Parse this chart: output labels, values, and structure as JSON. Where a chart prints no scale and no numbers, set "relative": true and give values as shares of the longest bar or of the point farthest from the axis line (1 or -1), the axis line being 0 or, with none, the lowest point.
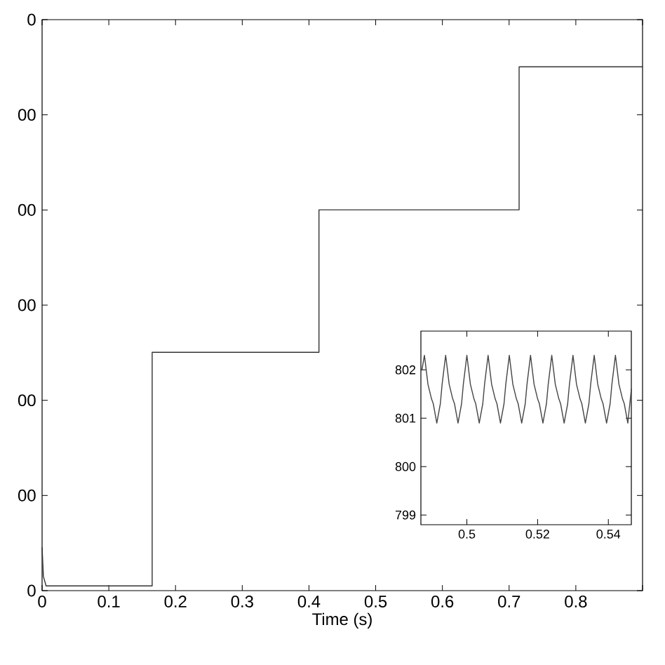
{
  "chart_data": [
    {
      "type": "line",
      "xlabel": "Time (s)",
      "relative": true,
      "x": [
        0,
        0.002,
        0.006,
        0.165,
        0.165,
        0.415,
        0.415,
        0.715,
        0.715,
        0.9
      ],
      "values": [
        0.082,
        0.027,
        0.009,
        0.009,
        0.455,
        0.455,
        0.727,
        0.727,
        1,
        1
      ],
      "color": "#333333",
      "xlim": [
        0,
        0.9
      ],
      "xticks": [
        0,
        0.1,
        0.2,
        0.3,
        0.4,
        0.5,
        0.6,
        0.7,
        0.8,
        {
          "value": 0.9,
          "label": null
        }
      ],
      "annotations": [
        "0",
        "00",
        "00",
        "00",
        "00",
        "00",
        "0"
      ]
    },
    {
      "type": "line",
      "x": [
        0.4873,
        0.488,
        0.489,
        0.49,
        0.4905,
        0.4915,
        0.4925,
        0.493,
        0.494,
        0.495,
        0.496,
        0.4965,
        0.4975,
        0.4985,
        0.499,
        0.5,
        0.501,
        0.502,
        0.5025,
        0.5035,
        0.5045,
        0.505,
        0.506,
        0.507,
        0.508,
        0.5085,
        0.5095,
        0.5105,
        0.511,
        0.512,
        0.513,
        0.514,
        0.5145,
        0.5155,
        0.5165,
        0.517,
        0.518,
        0.519,
        0.52,
        0.5205,
        0.5215,
        0.5225,
        0.523,
        0.524,
        0.525,
        0.526,
        0.5265,
        0.5275,
        0.5285,
        0.529,
        0.53,
        0.531,
        0.532,
        0.5325,
        0.5335,
        0.5345,
        0.535,
        0.536,
        0.537,
        0.538,
        0.5385,
        0.5395,
        0.5405,
        0.541,
        0.542,
        0.543,
        0.544,
        0.5445,
        0.5455,
        0.5465
      ],
      "values": [
        802.0,
        802.3,
        801.7,
        801.4,
        801.3,
        800.9,
        801.3,
        801.7,
        802.3,
        801.7,
        801.4,
        801.3,
        800.9,
        801.3,
        801.7,
        802.3,
        801.7,
        801.4,
        801.3,
        800.9,
        801.3,
        801.7,
        802.3,
        801.7,
        801.4,
        801.3,
        800.9,
        801.3,
        801.7,
        802.3,
        801.7,
        801.4,
        801.3,
        800.9,
        801.3,
        801.7,
        802.3,
        801.7,
        801.4,
        801.3,
        800.9,
        801.3,
        801.7,
        802.3,
        801.7,
        801.4,
        801.3,
        800.9,
        801.3,
        801.7,
        802.3,
        801.7,
        801.4,
        801.3,
        800.9,
        801.3,
        801.7,
        802.3,
        801.7,
        801.4,
        801.3,
        800.9,
        801.3,
        801.7,
        802.3,
        801.7,
        801.4,
        801.3,
        800.9,
        801.6
      ],
      "color": "#444444",
      "xlim": [
        0.487,
        0.5465
      ],
      "ylim": [
        798.8,
        802.8
      ],
      "xticks": [
        0.5,
        0.52,
        0.54
      ],
      "yticks": [
        799,
        800,
        801,
        802
      ]
    }
  ]
}
